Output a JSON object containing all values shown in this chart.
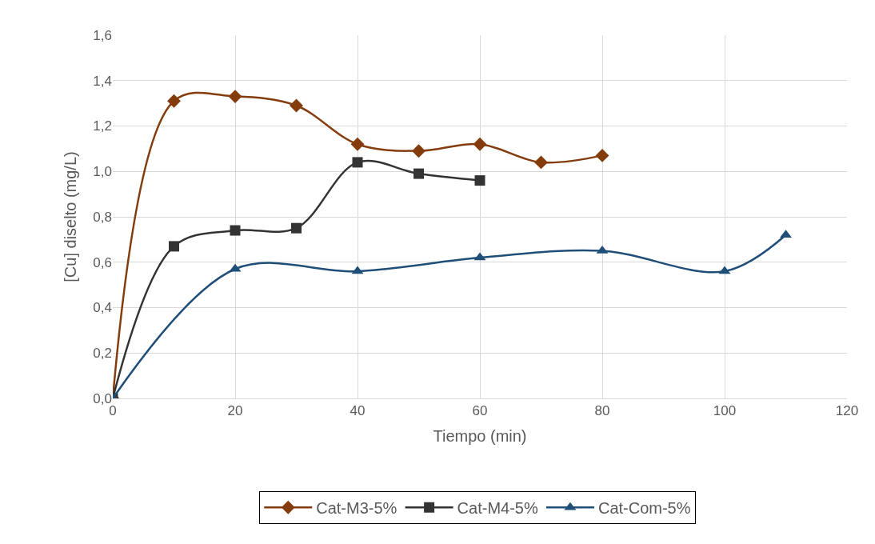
{
  "chart_data": {
    "type": "line",
    "xlabel": "Tiempo (min)",
    "ylabel": "[Cu] diselto (mg/L)",
    "series": [
      {
        "name": "Cat-M3-5%",
        "color": "#843c0c",
        "marker": "diamond",
        "x": [
          0,
          10,
          20,
          30,
          40,
          50,
          60,
          70,
          80
        ],
        "values": [
          0,
          1.31,
          1.33,
          1.29,
          1.12,
          1.09,
          1.12,
          1.04,
          1.07
        ]
      },
      {
        "name": "Cat-M4-5%",
        "color": "#333333",
        "marker": "square",
        "x": [
          0,
          10,
          20,
          30,
          40,
          50,
          60
        ],
        "values": [
          0,
          0.67,
          0.74,
          0.75,
          1.04,
          0.99,
          0.96
        ]
      },
      {
        "name": "Cat-Com-5%",
        "color": "#1f4e79",
        "marker": "triangle",
        "x": [
          0,
          20,
          40,
          60,
          80,
          100,
          110
        ],
        "values": [
          0,
          0.57,
          0.56,
          0.62,
          0.65,
          0.56,
          0.72
        ]
      }
    ],
    "xlim": [
      0,
      120
    ],
    "xticks": [
      0,
      20,
      40,
      60,
      80,
      100,
      120
    ],
    "ylim": [
      0,
      1.6
    ],
    "yticks": [
      {
        "value": 0,
        "label": "0,0"
      },
      {
        "value": 0.2,
        "label": "0,2"
      },
      {
        "value": 0.4,
        "label": "0,4"
      },
      {
        "value": 0.6,
        "label": "0,6"
      },
      {
        "value": 0.8,
        "label": "0,8"
      },
      {
        "value": 1.0,
        "label": "1,0"
      },
      {
        "value": 1.2,
        "label": "1,2"
      },
      {
        "value": 1.4,
        "label": "1,4"
      },
      {
        "value": 1.6,
        "label": "1,6"
      }
    ],
    "grid": true,
    "legend": "bottom"
  }
}
